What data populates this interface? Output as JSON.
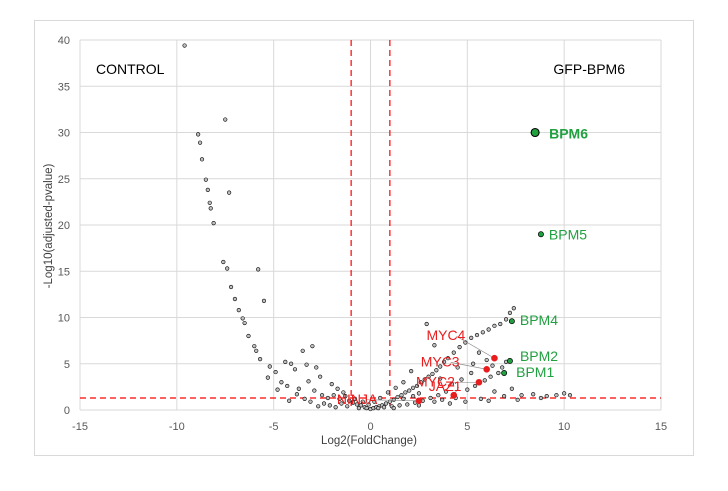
{
  "chart_data": {
    "type": "scatter",
    "xlabel": "Log2(FoldChange)",
    "ylabel": "-Log10(adjusted-pvalue)",
    "xlim": [
      -15,
      15
    ],
    "ylim": [
      0,
      40
    ],
    "xticks": [
      -15,
      -10,
      -5,
      0,
      5,
      10,
      15
    ],
    "yticks": [
      0,
      5,
      10,
      15,
      20,
      25,
      30,
      35,
      40
    ],
    "grid": true,
    "corner_labels": {
      "left": "CONTROL",
      "right": "GFP-BPM6"
    },
    "thresholds": {
      "vlines": [
        -1,
        1
      ],
      "hline": 1.3,
      "color": "#ff0000"
    },
    "colors": {
      "bpm": "#21a040",
      "highlight": "#e81d1d",
      "background": "#bfbfbf",
      "edge": "#000000",
      "grid": "#d9d9d9"
    },
    "background_points": [
      [
        -9.6,
        39.4
      ],
      [
        -8.9,
        29.8
      ],
      [
        -8.8,
        28.9
      ],
      [
        -8.7,
        27.1
      ],
      [
        -8.5,
        24.9
      ],
      [
        -8.4,
        23.8
      ],
      [
        -8.3,
        22.4
      ],
      [
        -8.25,
        21.8
      ],
      [
        -8.1,
        20.2
      ],
      [
        -7.5,
        31.4
      ],
      [
        -7.3,
        23.5
      ],
      [
        -7.6,
        16.0
      ],
      [
        -7.4,
        15.3
      ],
      [
        -7.2,
        13.3
      ],
      [
        -7.0,
        12.0
      ],
      [
        -5.8,
        15.2
      ],
      [
        -5.5,
        11.8
      ],
      [
        -6.8,
        10.8
      ],
      [
        -6.6,
        9.9
      ],
      [
        -6.5,
        9.4
      ],
      [
        -6.3,
        8.0
      ],
      [
        -6.0,
        6.9
      ],
      [
        -5.9,
        6.4
      ],
      [
        -5.7,
        5.5
      ],
      [
        -5.2,
        4.7
      ],
      [
        -4.9,
        4.1
      ],
      [
        -4.4,
        5.2
      ],
      [
        -4.1,
        5.0
      ],
      [
        -3.9,
        4.4
      ],
      [
        -3.5,
        6.4
      ],
      [
        -3.0,
        6.9
      ],
      [
        -2.8,
        4.6
      ],
      [
        -4.6,
        3.0
      ],
      [
        -4.3,
        2.6
      ],
      [
        -3.7,
        2.3
      ],
      [
        -3.2,
        3.1
      ],
      [
        -2.9,
        2.1
      ],
      [
        -2.5,
        1.6
      ],
      [
        -2.2,
        1.3
      ],
      [
        -1.9,
        1.6
      ],
      [
        -1.6,
        1.2
      ],
      [
        -1.3,
        1.5
      ],
      [
        -1.1,
        1.0
      ],
      [
        -0.9,
        0.8
      ],
      [
        -0.7,
        0.6
      ],
      [
        -0.5,
        0.5
      ],
      [
        -0.3,
        0.3
      ],
      [
        -0.2,
        0.2
      ],
      [
        0.0,
        0.1
      ],
      [
        0.15,
        0.2
      ],
      [
        0.3,
        0.3
      ],
      [
        0.45,
        0.4
      ],
      [
        0.6,
        0.5
      ],
      [
        0.8,
        0.7
      ],
      [
        1.0,
        0.9
      ],
      [
        1.2,
        1.1
      ],
      [
        1.4,
        1.4
      ],
      [
        1.6,
        1.6
      ],
      [
        1.8,
        1.9
      ],
      [
        2.0,
        2.1
      ],
      [
        2.2,
        2.4
      ],
      [
        2.4,
        2.6
      ],
      [
        2.6,
        3.0
      ],
      [
        2.8,
        3.3
      ],
      [
        3.0,
        3.6
      ],
      [
        3.2,
        3.9
      ],
      [
        3.4,
        4.3
      ],
      [
        3.6,
        4.7
      ],
      [
        3.8,
        5.2
      ],
      [
        4.0,
        5.6
      ],
      [
        4.3,
        6.2
      ],
      [
        4.6,
        6.8
      ],
      [
        4.9,
        7.3
      ],
      [
        5.2,
        7.8
      ],
      [
        5.5,
        8.1
      ],
      [
        5.8,
        8.4
      ],
      [
        6.1,
        8.7
      ],
      [
        6.4,
        9.1
      ],
      [
        6.7,
        9.3
      ],
      [
        7.0,
        9.8
      ],
      [
        7.2,
        10.5
      ],
      [
        7.4,
        11.0
      ],
      [
        5.6,
        6.2
      ],
      [
        6.0,
        5.4
      ],
      [
        6.3,
        4.8
      ],
      [
        6.8,
        4.6
      ],
      [
        7.0,
        5.2
      ],
      [
        5.2,
        4.0
      ],
      [
        4.7,
        3.3
      ],
      [
        4.2,
        2.8
      ],
      [
        3.9,
        2.0
      ],
      [
        3.5,
        1.6
      ],
      [
        3.1,
        1.3
      ],
      [
        2.7,
        1.0
      ],
      [
        2.3,
        0.8
      ],
      [
        1.9,
        0.6
      ],
      [
        1.5,
        0.5
      ],
      [
        1.1,
        0.4
      ],
      [
        0.7,
        0.3
      ],
      [
        0.4,
        0.2
      ],
      [
        2.9,
        9.3
      ],
      [
        3.3,
        7.0
      ],
      [
        2.1,
        4.2
      ],
      [
        1.7,
        3.0
      ],
      [
        1.3,
        2.4
      ],
      [
        0.9,
        1.9
      ],
      [
        0.5,
        1.3
      ],
      [
        0.2,
        0.9
      ],
      [
        -0.1,
        0.6
      ],
      [
        -0.4,
        0.9
      ],
      [
        -0.8,
        1.2
      ],
      [
        -1.2,
        0.4
      ],
      [
        -1.5,
        0.7
      ],
      [
        -1.8,
        0.3
      ],
      [
        -2.1,
        0.5
      ],
      [
        -2.4,
        0.7
      ],
      [
        -2.7,
        0.4
      ],
      [
        -3.1,
        0.9
      ],
      [
        -3.4,
        1.2
      ],
      [
        -3.8,
        1.7
      ],
      [
        -4.2,
        1.0
      ],
      [
        -4.8,
        2.2
      ],
      [
        -5.3,
        3.5
      ],
      [
        -2.0,
        2.8
      ],
      [
        -1.7,
        2.3
      ],
      [
        -1.4,
        1.9
      ],
      [
        -2.6,
        3.6
      ],
      [
        -3.3,
        4.9
      ],
      [
        5.0,
        2.2
      ],
      [
        5.4,
        2.6
      ],
      [
        5.9,
        3.2
      ],
      [
        6.2,
        3.6
      ],
      [
        6.6,
        4.0
      ],
      [
        7.3,
        2.3
      ],
      [
        7.8,
        1.6
      ],
      [
        8.4,
        1.7
      ],
      [
        9.1,
        1.5
      ],
      [
        9.6,
        1.6
      ],
      [
        10.0,
        1.8
      ],
      [
        10.3,
        1.6
      ],
      [
        8.8,
        1.3
      ],
      [
        7.6,
        1.1
      ],
      [
        6.9,
        1.5
      ],
      [
        6.4,
        2.0
      ],
      [
        4.4,
        1.3
      ],
      [
        3.7,
        1.1
      ],
      [
        3.3,
        0.9
      ],
      [
        2.5,
        0.5
      ],
      [
        5.7,
        1.2
      ],
      [
        6.1,
        1.0
      ],
      [
        4.9,
        0.9
      ],
      [
        4.1,
        0.7
      ],
      [
        3.6,
        3.4
      ],
      [
        4.5,
        4.6
      ],
      [
        5.3,
        5.0
      ],
      [
        2.5,
        1.8
      ],
      [
        1.2,
        0.2
      ],
      [
        -0.6,
        0.2
      ],
      [
        1.7,
        1.2
      ],
      [
        2.2,
        1.5
      ]
    ],
    "highlight_points": [
      {
        "name": "NINJA",
        "x": 2.5,
        "y": 1.0
      },
      {
        "name": "JAZ1",
        "x": 4.3,
        "y": 1.6
      },
      {
        "name": "MYC2",
        "x": 5.6,
        "y": 3.0
      },
      {
        "name": "MYC3",
        "x": 6.0,
        "y": 4.4
      },
      {
        "name": "MYC4",
        "x": 6.4,
        "y": 5.6
      }
    ],
    "bpm_points": [
      {
        "name": "BPM1",
        "x": 6.9,
        "y": 4.0
      },
      {
        "name": "BPM2",
        "x": 7.2,
        "y": 5.3
      },
      {
        "name": "BPM4",
        "x": 7.3,
        "y": 9.6
      },
      {
        "name": "BPM5",
        "x": 8.8,
        "y": 19.0
      },
      {
        "name": "BPM6",
        "x": 8.5,
        "y": 30.0
      }
    ]
  }
}
